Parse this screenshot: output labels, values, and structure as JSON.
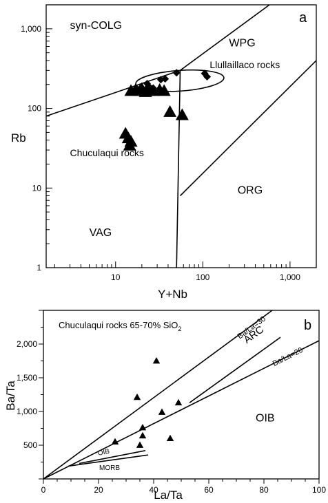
{
  "chart_data": [
    {
      "type": "scatter",
      "panel_label": "a",
      "xlabel": "Y+Nb",
      "ylabel": "Rb",
      "x_scale": "log",
      "y_scale": "log",
      "xlim": [
        1.6,
        2000
      ],
      "ylim": [
        1,
        2000
      ],
      "x_ticks": [
        {
          "value": 10,
          "label": "10"
        },
        {
          "value": 100,
          "label": "100"
        },
        {
          "value": 1000,
          "label": "1,000"
        }
      ],
      "y_ticks": [
        {
          "value": 1,
          "label": "1"
        },
        {
          "value": 10,
          "label": "10"
        },
        {
          "value": 100,
          "label": "100"
        },
        {
          "value": 1000,
          "label": "1,000"
        }
      ],
      "field_labels": [
        {
          "text": "syn-COLG",
          "x": 3.0,
          "y": 1000
        },
        {
          "text": "WPG",
          "x": 200,
          "y": 600
        },
        {
          "text": "Llullaillaco rocks",
          "x": 120,
          "y": 320
        },
        {
          "text": "Chuculaqui rocks",
          "x": 3.0,
          "y": 25
        },
        {
          "text": "ORG",
          "x": 250,
          "y": 8.5
        },
        {
          "text": "VAG",
          "x": 5.0,
          "y": 2.5
        }
      ],
      "boundary_lines": [
        {
          "points": [
            [
              1.6,
              80
            ],
            [
              55,
              300
            ],
            [
              580,
              2000
            ]
          ]
        },
        {
          "points": [
            [
              55,
              300
            ],
            [
              50,
              1
            ]
          ]
        },
        {
          "points": [
            [
              55,
              8
            ],
            [
              2000,
              400
            ]
          ]
        }
      ],
      "ellipse": {
        "center": [
          50,
          220
        ],
        "x_range": [
          17,
          175
        ],
        "y_range": [
          165,
          300
        ]
      },
      "series": [
        {
          "name": "Llullaillaco rocks",
          "marker": "diamond",
          "points": [
            [
              23,
              205
            ],
            [
              24,
              190
            ],
            [
              27,
              180
            ],
            [
              33,
              230
            ],
            [
              37,
              235
            ],
            [
              50,
              280
            ],
            [
              105,
              275
            ],
            [
              112,
              250
            ]
          ]
        },
        {
          "name": "Chuculaqui rocks",
          "marker": "triangle",
          "points": [
            [
              15,
              165
            ],
            [
              17,
              170
            ],
            [
              19,
              165
            ],
            [
              20,
              175
            ],
            [
              22,
              160
            ],
            [
              24,
              165
            ],
            [
              27,
              165
            ],
            [
              32,
              170
            ],
            [
              36,
              165
            ],
            [
              42,
              90
            ],
            [
              58,
              82
            ],
            [
              13,
              48
            ],
            [
              14,
              42
            ],
            [
              15,
              38
            ],
            [
              14.5,
              34
            ]
          ]
        }
      ]
    },
    {
      "type": "scatter",
      "panel_label": "b",
      "title": "Chuculaqui rocks 65-70% SiO",
      "title_subscript": "2",
      "xlabel": "La/Ta",
      "ylabel": "Ba/Ta",
      "xlim": [
        0,
        100
      ],
      "ylim": [
        0,
        2500
      ],
      "x_ticks": [
        {
          "value": 0,
          "label": "0"
        },
        {
          "value": 20,
          "label": "20"
        },
        {
          "value": 40,
          "label": "40"
        },
        {
          "value": 60,
          "label": "60"
        },
        {
          "value": 80,
          "label": "80"
        },
        {
          "value": 100,
          "label": "100"
        }
      ],
      "y_ticks": [
        {
          "value": 500,
          "label": "500"
        },
        {
          "value": 1000,
          "label": "1,000"
        },
        {
          "value": 1500,
          "label": "1,500"
        },
        {
          "value": 2000,
          "label": "2,000"
        }
      ],
      "reference_lines": [
        {
          "label": "Ba/La=30",
          "points": [
            [
              0,
              0
            ],
            [
              83,
              2500
            ]
          ],
          "label_at": [
            76,
            2215
          ]
        },
        {
          "label": "Ba/La=20",
          "points": [
            [
              0,
              0
            ],
            [
              100,
              2050
            ]
          ],
          "label_at": [
            89,
            1780
          ]
        }
      ],
      "region_lines": [
        {
          "label": "ARC",
          "points": [
            [
              53,
              1130
            ],
            [
              86,
              2100
            ]
          ],
          "label_at": [
            77,
            2100
          ]
        },
        {
          "label": "OIB",
          "points": [
            [
              13,
              230
            ],
            [
              37,
              420
            ]
          ],
          "label_at": [
            22,
            365
          ]
        },
        {
          "label": "MORB",
          "points": [
            [
              9,
              190
            ],
            [
              38,
              355
            ]
          ],
          "label_at": [
            24,
            135
          ]
        }
      ],
      "field_labels": [
        {
          "text": "OIB",
          "x": 77,
          "y": 850
        }
      ],
      "series": [
        {
          "name": "Chuculaqui rocks",
          "marker": "triangle",
          "points": [
            [
              26,
              550
            ],
            [
              34,
              1210
            ],
            [
              35,
              500
            ],
            [
              36,
              760
            ],
            [
              36,
              640
            ],
            [
              41,
              1750
            ],
            [
              43,
              990
            ],
            [
              46,
              600
            ],
            [
              49,
              1130
            ]
          ]
        }
      ]
    }
  ]
}
